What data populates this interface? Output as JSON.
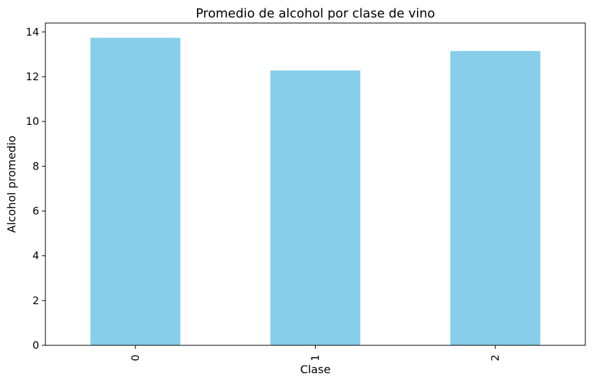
{
  "chart_data": {
    "type": "bar",
    "title": "Promedio de alcohol por clase de vino",
    "xlabel": "Clase",
    "ylabel": "Alcohol promedio",
    "categories": [
      "0",
      "1",
      "2"
    ],
    "values": [
      13.74,
      12.28,
      13.15
    ],
    "ylim": [
      0,
      14.4
    ],
    "yticks": [
      0,
      2,
      4,
      6,
      8,
      10,
      12,
      14
    ],
    "grid": false,
    "bar_color": "#87CEEB",
    "x_tick_rotation": 90
  }
}
